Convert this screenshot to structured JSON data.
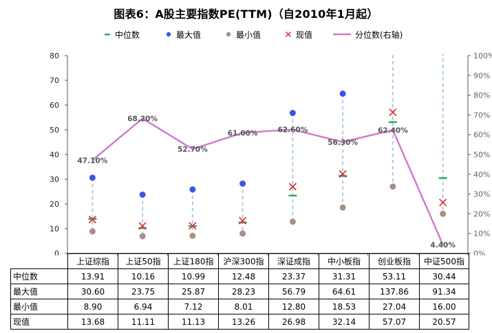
{
  "title": "图表6：A股主要指数PE(TTM)（自2010年1月起）",
  "legend": {
    "median": "中位数",
    "max": "最大值",
    "min": "最小值",
    "current": "现值",
    "percentile": "分位数(右轴)"
  },
  "colors": {
    "median": "#2EAA5E",
    "max": "#3B55E0",
    "min": "#A89088",
    "current": "#E8232B",
    "percentile": "#CE7BCF",
    "range": "#A9CCEC",
    "axis": "#555555"
  },
  "chart_data": {
    "type": "line+scatter",
    "title": "图表6：A股主要指数PE(TTM)（自2010年1月起）",
    "categories": [
      "上证综指",
      "上证50指",
      "上证180指",
      "沪深300指",
      "深证成指",
      "中小板指",
      "创业板指",
      "中证500指"
    ],
    "y_left": {
      "min": 0,
      "max": 80,
      "step": 10,
      "ticks": [
        "0",
        "10",
        "20",
        "30",
        "40",
        "50",
        "60",
        "70",
        "80"
      ]
    },
    "y_right": {
      "min": 0,
      "max": 100,
      "step": 10,
      "ticks": [
        "0%",
        "10%",
        "20%",
        "30%",
        "40%",
        "50%",
        "60%",
        "70%",
        "80%",
        "90%",
        "100%"
      ]
    },
    "series": [
      {
        "key": "median",
        "name": "中位数",
        "values": [
          13.91,
          10.16,
          10.99,
          12.48,
          23.37,
          31.31,
          53.11,
          30.44
        ]
      },
      {
        "key": "max",
        "name": "最大值",
        "values": [
          30.6,
          23.75,
          25.87,
          28.23,
          56.79,
          64.61,
          137.86,
          91.34
        ]
      },
      {
        "key": "min",
        "name": "最小值",
        "values": [
          8.9,
          6.94,
          7.12,
          8.01,
          12.8,
          18.53,
          27.04,
          16.0
        ]
      },
      {
        "key": "current",
        "name": "现值",
        "values": [
          13.68,
          11.11,
          11.13,
          13.26,
          26.98,
          32.14,
          57.07,
          20.57
        ]
      },
      {
        "key": "percentile",
        "name": "分位数(右轴)",
        "axis": "right",
        "values": [
          47.1,
          68.2,
          52.7,
          61.0,
          62.6,
          56.3,
          62.4,
          4.4
        ]
      }
    ],
    "percentile_labels": [
      "47.10%",
      "68.20%",
      "52.70%",
      "61.00%",
      "62.60%",
      "56.30%",
      "62.40%",
      "4.40%"
    ]
  },
  "table": {
    "rows": [
      {
        "label": "中位数",
        "values": [
          "13.91",
          "10.16",
          "10.99",
          "12.48",
          "23.37",
          "31.31",
          "53.11",
          "30.44"
        ]
      },
      {
        "label": "最大值",
        "values": [
          "30.60",
          "23.75",
          "25.87",
          "28.23",
          "56.79",
          "64.61",
          "137.86",
          "91.34"
        ]
      },
      {
        "label": "最小值",
        "values": [
          "8.90",
          "6.94",
          "7.12",
          "8.01",
          "12.80",
          "18.53",
          "27.04",
          "16.00"
        ]
      },
      {
        "label": "现值",
        "values": [
          "13.68",
          "11.11",
          "11.13",
          "13.26",
          "26.98",
          "32.14",
          "57.07",
          "20.57"
        ]
      }
    ]
  }
}
